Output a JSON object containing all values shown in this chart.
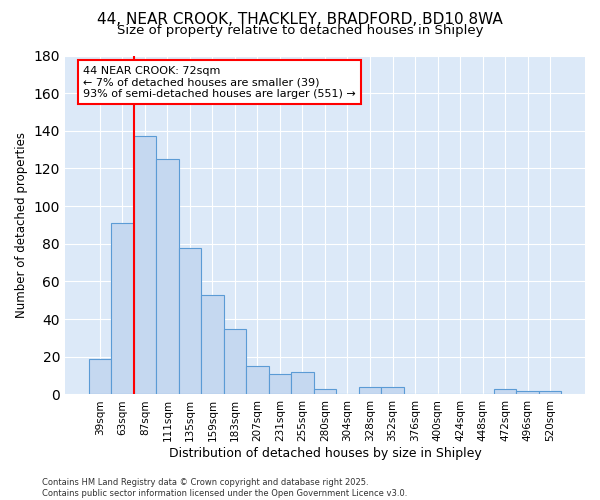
{
  "title_line1": "44, NEAR CROOK, THACKLEY, BRADFORD, BD10 8WA",
  "title_line2": "Size of property relative to detached houses in Shipley",
  "categories": [
    "39sqm",
    "63sqm",
    "87sqm",
    "111sqm",
    "135sqm",
    "159sqm",
    "183sqm",
    "207sqm",
    "231sqm",
    "255sqm",
    "280sqm",
    "304sqm",
    "328sqm",
    "352sqm",
    "376sqm",
    "400sqm",
    "424sqm",
    "448sqm",
    "472sqm",
    "496sqm",
    "520sqm"
  ],
  "values": [
    19,
    91,
    137,
    125,
    78,
    53,
    35,
    15,
    11,
    12,
    3,
    0,
    4,
    4,
    0,
    0,
    0,
    0,
    3,
    2,
    2
  ],
  "bar_color": "#c5d8f0",
  "bar_edge_color": "#5b9bd5",
  "ylabel": "Number of detached properties",
  "xlabel": "Distribution of detached houses by size in Shipley",
  "ylim": [
    0,
    180
  ],
  "yticks": [
    0,
    20,
    40,
    60,
    80,
    100,
    120,
    140,
    160,
    180
  ],
  "red_line_x": 1.5,
  "annotation_text": "44 NEAR CROOK: 72sqm\n← 7% of detached houses are smaller (39)\n93% of semi-detached houses are larger (551) →",
  "fig_bg_color": "#ffffff",
  "plot_bg_color": "#dce9f8",
  "grid_color": "#ffffff",
  "footer_text": "Contains HM Land Registry data © Crown copyright and database right 2025.\nContains public sector information licensed under the Open Government Licence v3.0."
}
